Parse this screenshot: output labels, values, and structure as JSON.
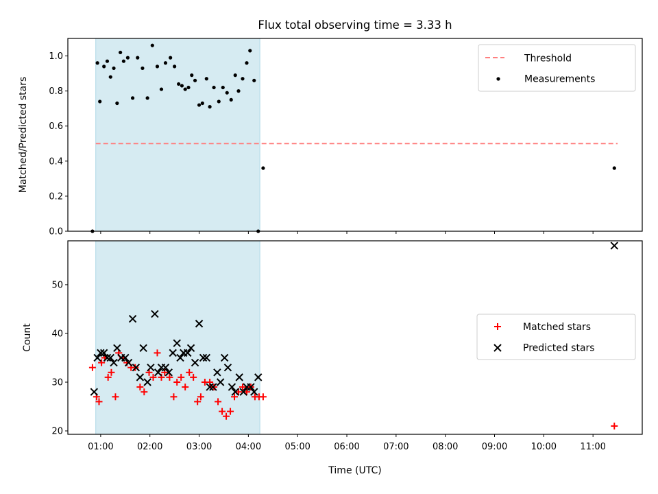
{
  "chart_data": {
    "type": "scatter",
    "title": "Flux total observing time = 3.33 h",
    "xlabel": "Time (UTC)",
    "shaded_span": [
      "00:54",
      "04:14"
    ],
    "shaded_color": "#add8e6",
    "xticks": [
      "01:00",
      "02:00",
      "03:00",
      "04:00",
      "05:00",
      "06:00",
      "07:00",
      "08:00",
      "09:00",
      "10:00",
      "11:00"
    ],
    "xlim": [
      "00:20",
      "12:00"
    ],
    "top": {
      "ylabel": "Matched/Predicted stars",
      "ylim": [
        0,
        1.1
      ],
      "yticks": [
        "0.0",
        "0.2",
        "0.4",
        "0.6",
        "0.8",
        "1.0"
      ],
      "legend_position": "upper right",
      "threshold": {
        "name": "Threshold",
        "value": 0.5,
        "x_range": [
          "00:54",
          "11:30"
        ],
        "color": "#ff7f7f",
        "style": "dashed"
      },
      "measurements": {
        "name": "Measurements",
        "color": "#000000",
        "x": [
          "00:50",
          "00:56",
          "00:59",
          "01:04",
          "01:08",
          "01:12",
          "01:16",
          "01:20",
          "01:24",
          "01:28",
          "01:33",
          "01:39",
          "01:45",
          "01:51",
          "01:57",
          "02:03",
          "02:09",
          "02:14",
          "02:19",
          "02:25",
          "02:30",
          "02:35",
          "02:39",
          "02:43",
          "02:47",
          "02:51",
          "02:55",
          "03:00",
          "03:04",
          "03:09",
          "03:13",
          "03:18",
          "03:24",
          "03:29",
          "03:34",
          "03:39",
          "03:44",
          "03:48",
          "03:53",
          "03:58",
          "04:02",
          "04:07",
          "04:12",
          "04:18",
          "11:26"
        ],
        "y": [
          0.0,
          0.96,
          0.74,
          0.94,
          0.97,
          0.88,
          0.93,
          0.73,
          1.02,
          0.97,
          0.99,
          0.76,
          0.99,
          0.93,
          0.76,
          1.06,
          0.94,
          0.81,
          0.96,
          0.99,
          0.94,
          0.84,
          0.83,
          0.81,
          0.82,
          0.89,
          0.86,
          0.72,
          0.73,
          0.87,
          0.71,
          0.82,
          0.74,
          0.82,
          0.79,
          0.75,
          0.89,
          0.8,
          0.87,
          0.96,
          1.03,
          0.86,
          0.0,
          0.36,
          0.36
        ]
      }
    },
    "bottom": {
      "ylabel": "Count",
      "ylim": [
        19.3,
        59
      ],
      "yticks": [
        "20",
        "30",
        "40",
        "50"
      ],
      "legend_position": "center right",
      "series": [
        {
          "name": "Matched stars",
          "marker": "plus",
          "color": "#ff0000",
          "x": [
            "00:50",
            "00:55",
            "00:58",
            "01:01",
            "01:05",
            "01:09",
            "01:13",
            "01:18",
            "01:22",
            "01:27",
            "01:32",
            "01:37",
            "01:42",
            "01:48",
            "01:53",
            "01:59",
            "02:04",
            "02:09",
            "02:14",
            "02:18",
            "02:24",
            "02:29",
            "02:33",
            "02:38",
            "02:43",
            "02:48",
            "02:53",
            "02:58",
            "03:02",
            "03:07",
            "03:13",
            "03:18",
            "03:23",
            "03:28",
            "03:33",
            "03:38",
            "03:43",
            "03:48",
            "03:53",
            "03:58",
            "04:03",
            "04:08",
            "04:13",
            "04:18",
            "11:26"
          ],
          "y": [
            33,
            27,
            26,
            34,
            35,
            31,
            32,
            27,
            36,
            35,
            34,
            33,
            33,
            29,
            28,
            32,
            31,
            36,
            31,
            32,
            31,
            27,
            30,
            31,
            29,
            32,
            31,
            26,
            27,
            30,
            30,
            29,
            26,
            24,
            23,
            24,
            27,
            28,
            29,
            28,
            29,
            27,
            27,
            27,
            21
          ]
        },
        {
          "name": "Predicted stars",
          "marker": "x",
          "color": "#000000",
          "x": [
            "00:52",
            "00:56",
            "01:00",
            "01:04",
            "01:08",
            "01:12",
            "01:16",
            "01:20",
            "01:25",
            "01:30",
            "01:34",
            "01:39",
            "01:43",
            "01:48",
            "01:52",
            "01:57",
            "02:01",
            "02:06",
            "02:10",
            "02:14",
            "02:19",
            "02:23",
            "02:28",
            "02:33",
            "02:37",
            "02:41",
            "02:46",
            "02:50",
            "02:55",
            "03:00",
            "03:05",
            "03:09",
            "03:13",
            "03:17",
            "03:22",
            "03:26",
            "03:31",
            "03:35",
            "03:40",
            "03:44",
            "03:49",
            "03:54",
            "03:58",
            "04:03",
            "04:07",
            "04:12",
            "11:26"
          ],
          "y": [
            28,
            35,
            36,
            36,
            35,
            35,
            34,
            37,
            35,
            35,
            34,
            43,
            33,
            31,
            37,
            30,
            33,
            44,
            32,
            33,
            33,
            32,
            36,
            38,
            35,
            36,
            36,
            37,
            34,
            42,
            35,
            35,
            29,
            29,
            32,
            30,
            35,
            33,
            29,
            28,
            31,
            28,
            29,
            29,
            28,
            31,
            58
          ]
        }
      ]
    }
  }
}
